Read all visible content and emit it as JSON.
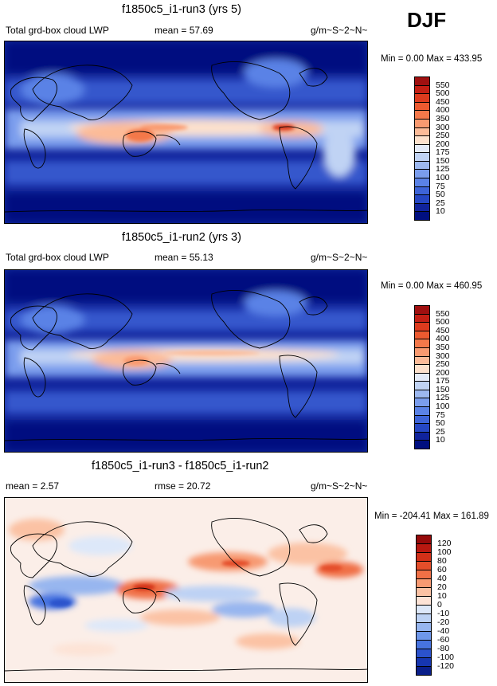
{
  "season": "DJF",
  "units": "g/m~S~2~N~",
  "panels": [
    {
      "id": "run3",
      "title": "f1850c5_i1-run3 (yrs 5)",
      "variable": "Total grd-box cloud LWP",
      "mean_label": "mean =  57.69",
      "minmax": "Min =   0.00 Max = 433.95",
      "colorbar": {
        "levels": [
          "550",
          "500",
          "450",
          "400",
          "350",
          "300",
          "250",
          "200",
          "175",
          "150",
          "125",
          "100",
          "75",
          "50",
          "25",
          "10"
        ],
        "colors": [
          "#a01010",
          "#c41f14",
          "#dd3b1e",
          "#ec5a30",
          "#f4784a",
          "#f99a70",
          "#fcbb98",
          "#fde1cc",
          "#e4ebf8",
          "#c0d3f4",
          "#9cb8f0",
          "#7a9ded",
          "#5a82e6",
          "#3d64d8",
          "#2547c4",
          "#10239c",
          "#000f80"
        ]
      }
    },
    {
      "id": "run2",
      "title": "f1850c5_i1-run2 (yrs 3)",
      "variable": "Total grd-box cloud LWP",
      "mean_label": "mean =  55.13",
      "minmax": "Min =   0.00 Max = 460.95",
      "colorbar": {
        "levels": [
          "550",
          "500",
          "450",
          "400",
          "350",
          "300",
          "250",
          "200",
          "175",
          "150",
          "125",
          "100",
          "75",
          "50",
          "25",
          "10"
        ],
        "colors": [
          "#a01010",
          "#c41f14",
          "#dd3b1e",
          "#ec5a30",
          "#f4784a",
          "#f99a70",
          "#fcbb98",
          "#fde1cc",
          "#e4ebf8",
          "#c0d3f4",
          "#9cb8f0",
          "#7a9ded",
          "#5a82e6",
          "#3d64d8",
          "#2547c4",
          "#10239c",
          "#000f80"
        ]
      }
    },
    {
      "id": "diff",
      "title": "f1850c5_i1-run3 - f1850c5_i1-run2",
      "mean_label": "mean =   2.57",
      "rmse_label": "rmse =  20.72",
      "minmax": "Min = -204.41 Max = 161.89",
      "colorbar": {
        "levels": [
          "120",
          "100",
          "80",
          "60",
          "40",
          "20",
          "10",
          "0",
          "-10",
          "-20",
          "-40",
          "-60",
          "-80",
          "-100",
          "-120"
        ],
        "colors": [
          "#960a0a",
          "#b81810",
          "#d23018",
          "#e44e2a",
          "#f07046",
          "#f79a72",
          "#fbc2a4",
          "#fde3d6",
          "#dde8f9",
          "#bdd2f4",
          "#97b6ef",
          "#6e97ea",
          "#4773e0",
          "#2b52cc",
          "#1636b0",
          "#0a1f8a"
        ]
      }
    }
  ]
}
